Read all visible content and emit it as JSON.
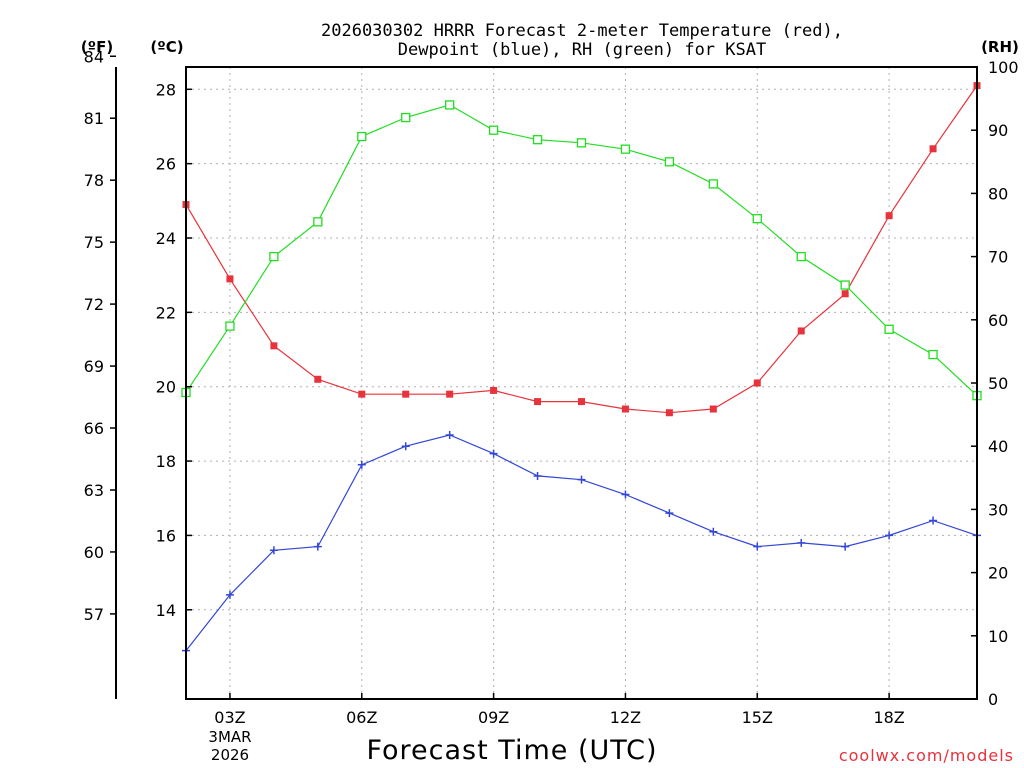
{
  "chart_data": {
    "type": "line",
    "title_line1": "2026030302 HRRR Forecast 2-meter Temperature (red),",
    "title_line2": "Dewpoint (blue), RH (green) for KSAT",
    "xlabel": "Forecast Time (UTC)",
    "unit_f": "(ºF)",
    "unit_c": "(ºC)",
    "unit_rh": "(RH)",
    "credit": "coolwx.com/models",
    "date_label_1": "3MAR",
    "date_label_2": "2026",
    "x_hours": [
      2,
      3,
      4,
      5,
      6,
      7,
      8,
      9,
      10,
      11,
      12,
      13,
      14,
      15,
      16,
      17,
      18,
      19,
      20
    ],
    "x_ticks": [
      {
        "hour": 3,
        "label": "03Z"
      },
      {
        "hour": 6,
        "label": "06Z"
      },
      {
        "hour": 9,
        "label": "09Z"
      },
      {
        "hour": 12,
        "label": "12Z"
      },
      {
        "hour": 15,
        "label": "15Z"
      },
      {
        "hour": 18,
        "label": "18Z"
      }
    ],
    "celsius_axis": {
      "range": [
        11.6,
        28.6
      ],
      "ticks": [
        14,
        16,
        18,
        20,
        22,
        24,
        26,
        28
      ]
    },
    "fahrenheit_ticks": [
      57,
      60,
      63,
      66,
      69,
      72,
      75,
      78,
      81,
      84
    ],
    "rh_axis": {
      "range": [
        0,
        100
      ],
      "ticks": [
        0,
        10,
        20,
        30,
        40,
        50,
        60,
        70,
        80,
        90,
        100
      ]
    },
    "series": [
      {
        "name": "Temperature",
        "unit": "C",
        "color": "#e8323c",
        "marker": "filled-square",
        "values": [
          24.9,
          22.9,
          21.1,
          20.2,
          19.8,
          19.8,
          19.8,
          19.9,
          19.6,
          19.6,
          19.4,
          19.3,
          19.4,
          20.1,
          21.5,
          22.5,
          24.6,
          26.4,
          28.1
        ]
      },
      {
        "name": "Dewpoint",
        "unit": "C",
        "color": "#3346d6",
        "marker": "plus",
        "values": [
          12.9,
          14.4,
          15.6,
          15.7,
          17.9,
          18.4,
          18.7,
          18.2,
          17.6,
          17.5,
          17.1,
          16.6,
          16.1,
          15.7,
          15.8,
          15.7,
          16.0,
          16.4,
          16.0
        ]
      },
      {
        "name": "RH",
        "unit": "%",
        "color": "#22dd22",
        "marker": "open-square",
        "values": [
          48.5,
          59,
          70,
          75.5,
          89,
          92,
          94,
          90,
          88.5,
          88,
          87,
          85,
          81.5,
          76,
          70,
          65.5,
          58.5,
          54.5,
          48
        ]
      }
    ]
  }
}
